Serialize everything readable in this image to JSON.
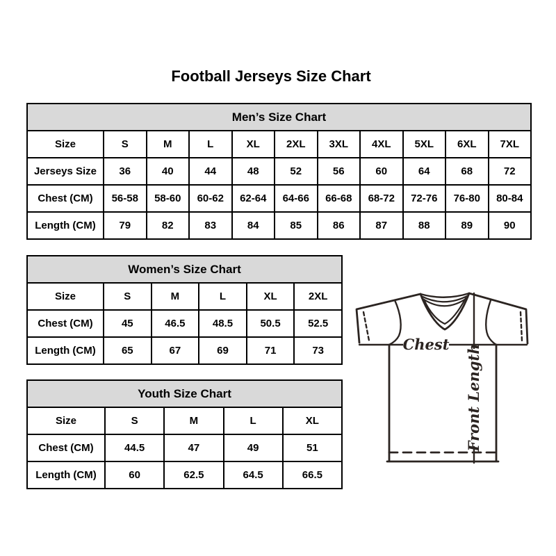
{
  "page_title": "Football Jerseys Size Chart",
  "chart_data": [
    {
      "type": "table",
      "title": "Men’s Size Chart",
      "rows": [
        [
          "Size",
          "S",
          "M",
          "L",
          "XL",
          "2XL",
          "3XL",
          "4XL",
          "5XL",
          "6XL",
          "7XL"
        ],
        [
          "Jerseys Size",
          "36",
          "40",
          "44",
          "48",
          "52",
          "56",
          "60",
          "64",
          "68",
          "72"
        ],
        [
          "Chest (CM)",
          "56-58",
          "58-60",
          "60-62",
          "62-64",
          "64-66",
          "66-68",
          "68-72",
          "72-76",
          "76-80",
          "80-84"
        ],
        [
          "Length (CM)",
          "79",
          "82",
          "83",
          "84",
          "85",
          "86",
          "87",
          "88",
          "89",
          "90"
        ]
      ]
    },
    {
      "type": "table",
      "title": "Women’s Size Chart",
      "rows": [
        [
          "Size",
          "S",
          "M",
          "L",
          "XL",
          "2XL"
        ],
        [
          "Chest (CM)",
          "45",
          "46.5",
          "48.5",
          "50.5",
          "52.5"
        ],
        [
          "Length (CM)",
          "65",
          "67",
          "69",
          "71",
          "73"
        ]
      ]
    },
    {
      "type": "table",
      "title": "Youth Size Chart",
      "rows": [
        [
          "Size",
          "S",
          "M",
          "L",
          "XL"
        ],
        [
          "Chest (CM)",
          "44.5",
          "47",
          "49",
          "51"
        ],
        [
          "Length (CM)",
          "60",
          "62.5",
          "64.5",
          "66.5"
        ]
      ]
    }
  ],
  "diagram": {
    "chest_label": "Chest",
    "front_length_label": "Front Length"
  },
  "colors": {
    "table_band_bg": "#d9d9d9",
    "table_border": "#000000",
    "jersey_outline": "#2b2421"
  }
}
